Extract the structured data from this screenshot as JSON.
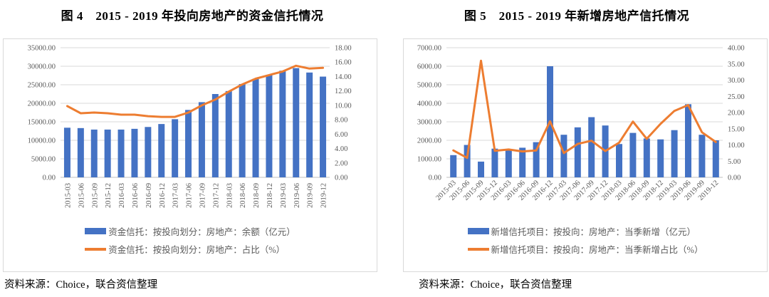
{
  "chart_data": [
    {
      "id": "figure-4",
      "type": "bar+line combo",
      "title": "图 4　2015 - 2019 年投向房地产的资金信托情况",
      "source": "资料来源：Choice，联合资信整理",
      "categories": [
        "2015-03",
        "2015-06",
        "2015-09",
        "2015-12",
        "2016-03",
        "2016-06",
        "2016-09",
        "2016-12",
        "2017-03",
        "2017-06",
        "2017-09",
        "2017-12",
        "2018-03",
        "2018-06",
        "2018-09",
        "2018-12",
        "2019-03",
        "2019-06",
        "2019-09",
        "2019-12"
      ],
      "series": [
        {
          "name": "资金信托：按投向划分：房地产：余额（亿元）",
          "type": "bar",
          "axis": "left",
          "color": "#4472C4",
          "values": [
            13400,
            13300,
            12900,
            12900,
            12900,
            13100,
            13600,
            14400,
            15700,
            18200,
            20300,
            22500,
            23300,
            25200,
            26600,
            27700,
            28800,
            29500,
            28300,
            27200
          ]
        },
        {
          "name": "资金信托：按投向划分：房地产：占比（%）",
          "type": "line",
          "axis": "right",
          "color": "#ED7D31",
          "values": [
            9.9,
            8.9,
            9.0,
            8.9,
            8.7,
            8.7,
            8.5,
            8.4,
            8.4,
            9.0,
            10.0,
            10.8,
            11.9,
            12.9,
            13.7,
            14.2,
            14.7,
            15.5,
            15.1,
            15.2
          ]
        }
      ],
      "left_axis": {
        "min": 0,
        "max": 35000,
        "step": 5000,
        "ticks": [
          "0.00",
          "5000.00",
          "10000.00",
          "15000.00",
          "20000.00",
          "25000.00",
          "30000.00",
          "35000.00"
        ]
      },
      "right_axis": {
        "min": 0,
        "max": 18,
        "step": 2,
        "ticks": [
          "0.00",
          "2.00",
          "4.00",
          "6.00",
          "8.00",
          "10.00",
          "12.00",
          "14.00",
          "16.00",
          "18.00"
        ]
      },
      "gridlines": "horizontal, aligned to left axis",
      "legend_position": "bottom",
      "x_label_rotation": -90
    },
    {
      "id": "figure-5",
      "type": "bar+line combo",
      "title": "图 5　2015 - 2019 年新增房地产信托情况",
      "source": "资料来源：Choice，联合资信整理",
      "categories": [
        "2015-03",
        "2015-06",
        "2015-09",
        "2015-12",
        "2016-03",
        "2016-06",
        "2016-09",
        "2016-12",
        "2017-03",
        "2017-06",
        "2017-09",
        "2017-12",
        "2018-03",
        "2018-06",
        "2018-09",
        "2018-12",
        "2019-03",
        "2019-06",
        "2019-09",
        "2019-12"
      ],
      "series": [
        {
          "name": "新增信托项目：按投向：房地产：当季新增（亿元）",
          "type": "bar",
          "axis": "left",
          "color": "#4472C4",
          "values": [
            1200,
            1750,
            850,
            1550,
            1500,
            1600,
            1900,
            6000,
            2300,
            2700,
            3250,
            2800,
            1800,
            2400,
            2100,
            2050,
            2550,
            3950,
            2300,
            2000
          ]
        },
        {
          "name": "新增信托项目：按投向：房地产：当季新增占比（%）",
          "type": "line",
          "axis": "right",
          "color": "#ED7D31",
          "values": [
            8.3,
            6.0,
            36.0,
            8.2,
            8.6,
            8.0,
            8.3,
            17.3,
            7.5,
            10.3,
            11.3,
            8.1,
            10.7,
            17.2,
            11.9,
            16.5,
            20.5,
            22.3,
            13.9,
            10.9
          ]
        }
      ],
      "left_axis": {
        "min": 0,
        "max": 7000,
        "step": 1000,
        "ticks": [
          "0.00",
          "1000.00",
          "2000.00",
          "3000.00",
          "4000.00",
          "5000.00",
          "6000.00",
          "7000.00"
        ]
      },
      "right_axis": {
        "min": 0,
        "max": 40,
        "step": 5,
        "ticks": [
          "0.00",
          "5.00",
          "10.00",
          "15.00",
          "20.00",
          "25.00",
          "30.00",
          "35.00",
          "40.00"
        ]
      },
      "gridlines": "horizontal, aligned to left axis",
      "legend_position": "bottom",
      "x_label_rotation": -45
    }
  ],
  "colors": {
    "grid": "#D9D9D9",
    "axis_line": "#BFBFBF",
    "axis_text": "#595959"
  }
}
